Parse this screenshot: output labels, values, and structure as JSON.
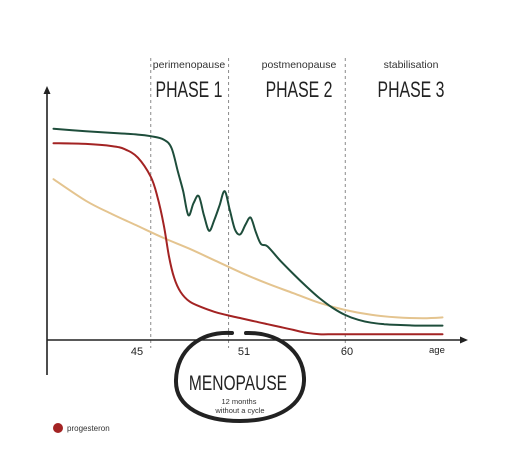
{
  "chart_data": {
    "type": "line",
    "xlabel": "age",
    "x_ticks": [
      "45",
      "51",
      "60"
    ],
    "phases": [
      {
        "subtitle": "perimenopause",
        "title": "PHASE 1"
      },
      {
        "subtitle": "postmenopause",
        "title": "PHASE 2"
      },
      {
        "subtitle": "stabilisation",
        "title": "PHASE 3"
      }
    ],
    "phase_boundaries": [
      45,
      51,
      60
    ],
    "x_range": [
      37,
      69
    ],
    "y_range": [
      0,
      100
    ],
    "series": [
      {
        "color": "#1e4d3b",
        "points": [
          [
            37.5,
            88
          ],
          [
            40,
            87
          ],
          [
            42,
            86.3
          ],
          [
            44,
            85.6
          ],
          [
            45,
            84.9
          ],
          [
            46,
            83.5
          ],
          [
            46.6,
            80
          ],
          [
            47.1,
            70
          ],
          [
            47.5,
            62
          ],
          [
            47.9,
            52
          ],
          [
            48.3,
            57
          ],
          [
            48.7,
            60
          ],
          [
            49.1,
            52
          ],
          [
            49.5,
            45.5
          ],
          [
            49.9,
            50
          ],
          [
            50.3,
            56
          ],
          [
            50.7,
            62
          ],
          [
            51.1,
            54
          ],
          [
            51.5,
            46
          ],
          [
            51.9,
            44
          ],
          [
            52.3,
            48
          ],
          [
            52.7,
            51
          ],
          [
            53.1,
            45
          ],
          [
            53.5,
            40
          ],
          [
            54,
            39
          ],
          [
            55,
            33
          ],
          [
            56,
            27.5
          ],
          [
            57,
            22.3
          ],
          [
            58,
            17.5
          ],
          [
            59,
            13.5
          ],
          [
            60,
            10.4
          ],
          [
            61,
            8.4
          ],
          [
            62,
            7.2
          ],
          [
            63,
            6.6
          ],
          [
            64,
            6.3
          ],
          [
            65,
            6.1
          ],
          [
            66,
            6.0
          ],
          [
            67.5,
            6.0
          ]
        ]
      },
      {
        "name": "progesteron",
        "color": "#a32323",
        "points": [
          [
            37.5,
            82
          ],
          [
            40,
            81.7
          ],
          [
            42,
            80.8
          ],
          [
            43,
            79.5
          ],
          [
            44,
            76
          ],
          [
            45,
            68
          ],
          [
            45.5,
            60
          ],
          [
            46,
            48
          ],
          [
            46.4,
            35
          ],
          [
            46.8,
            26
          ],
          [
            47.3,
            20
          ],
          [
            48,
            16
          ],
          [
            49,
            13.5
          ],
          [
            50,
            11.6
          ],
          [
            51,
            10.2
          ],
          [
            52,
            9.0
          ],
          [
            53,
            7.8
          ],
          [
            54,
            6.6
          ],
          [
            55,
            5.4
          ],
          [
            56,
            4.2
          ],
          [
            57,
            3.0
          ],
          [
            58,
            2.4
          ],
          [
            59,
            2.4
          ],
          [
            60,
            2.4
          ],
          [
            62,
            2.4
          ],
          [
            65,
            2.4
          ],
          [
            67.5,
            2.4
          ]
        ]
      },
      {
        "color": "#e4c48f",
        "points": [
          [
            37.5,
            67
          ],
          [
            40,
            58
          ],
          [
            42,
            52.5
          ],
          [
            44,
            47.5
          ],
          [
            46,
            42.5
          ],
          [
            48,
            38
          ],
          [
            50,
            33
          ],
          [
            52,
            28
          ],
          [
            54,
            23.5
          ],
          [
            56,
            19.5
          ],
          [
            58,
            15.5
          ],
          [
            60,
            12.5
          ],
          [
            62,
            10.5
          ],
          [
            64,
            9.4
          ],
          [
            66,
            9.1
          ],
          [
            67.5,
            9.4
          ]
        ]
      }
    ],
    "annotation": {
      "title": "MENOPAUSE",
      "subtitle": "12 months\nwithout a cycle"
    }
  },
  "colors": {
    "axis": "#222222",
    "divider": "#8a8a8a",
    "circle": "#222222",
    "legend_dot": "#a32323"
  }
}
